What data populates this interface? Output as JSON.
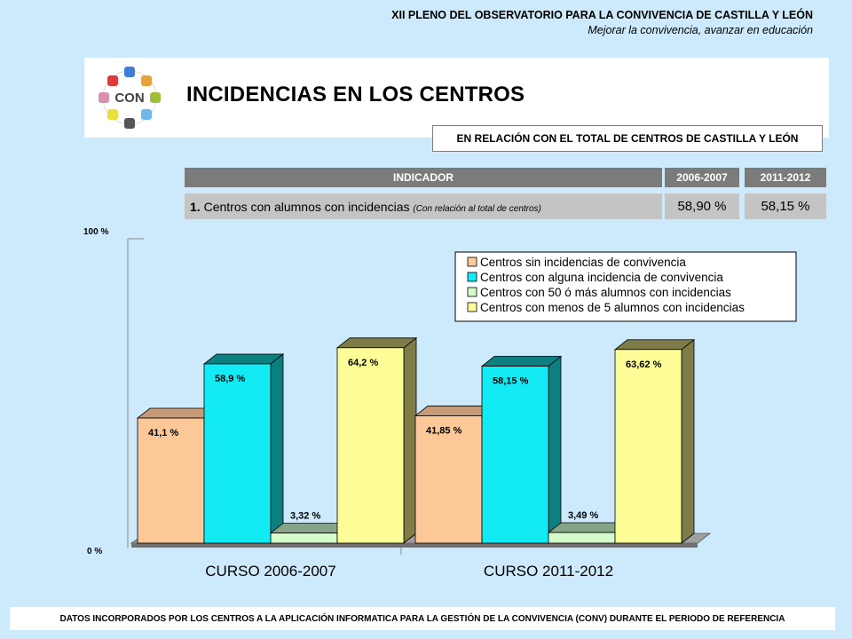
{
  "header": {
    "line1": "XII PLENO DEL OBSERVATORIO PARA LA CONVIVENCIA DE CASTILLA Y LEÓN",
    "line2": "Mejorar la convivencia, avanzar en educación"
  },
  "banner": {
    "title": "INCIDENCIAS EN LOS CENTROS",
    "logo_text": "CON"
  },
  "subbar": "EN RELACIÓN CON EL TOTAL DE CENTROS DE CASTILLA Y LEÓN",
  "table": {
    "headers": [
      "INDICADOR",
      "2006-2007",
      "2011-2012"
    ],
    "row": {
      "number": "1.",
      "text": "Centros con alumnos con incidencias",
      "note": "(Con relación al total de centros)",
      "v1": "58,90 %",
      "v2": "58,15 %"
    }
  },
  "footer": "DATOS INCORPORADOS POR LOS CENTROS A LA APLICACIÓN INFORMATICA PARA LA GESTIÓN DE LA CONVIVENCIA (CONV) DURANTE EL PERIODO DE REFERENCIA",
  "colors": {
    "series": [
      "#fcc898",
      "#12ebf3",
      "#d3fcca",
      "#fdfd98"
    ],
    "side": [
      "#c79a77",
      "#0c7f7f",
      "#86a487",
      "#7e7c48"
    ]
  },
  "chart_data": {
    "type": "bar",
    "categories": [
      "CURSO 2006-2007",
      "CURSO 2011-2012"
    ],
    "series": [
      {
        "name": "Centros sin incidencias de convivencia",
        "values": [
          41.1,
          41.85
        ],
        "labels": [
          "41,1 %",
          "41,85 %"
        ]
      },
      {
        "name": "Centros con alguna incidencia de convivencia",
        "values": [
          58.9,
          58.15
        ],
        "labels": [
          "58,9 %",
          "58,15 %"
        ]
      },
      {
        "name": "Centros con 50 ó más alumnos con incidencias",
        "values": [
          3.32,
          3.49
        ],
        "labels": [
          "3,32 %",
          "3,49 %"
        ]
      },
      {
        "name": "Centros con menos de 5 alumnos con incidencias",
        "values": [
          64.2,
          63.62
        ],
        "labels": [
          "64,2 %",
          "63,62 %"
        ]
      }
    ],
    "yticks": [
      "0 %",
      "100 %"
    ],
    "ylim": [
      0,
      100
    ],
    "legend": "top-right"
  }
}
